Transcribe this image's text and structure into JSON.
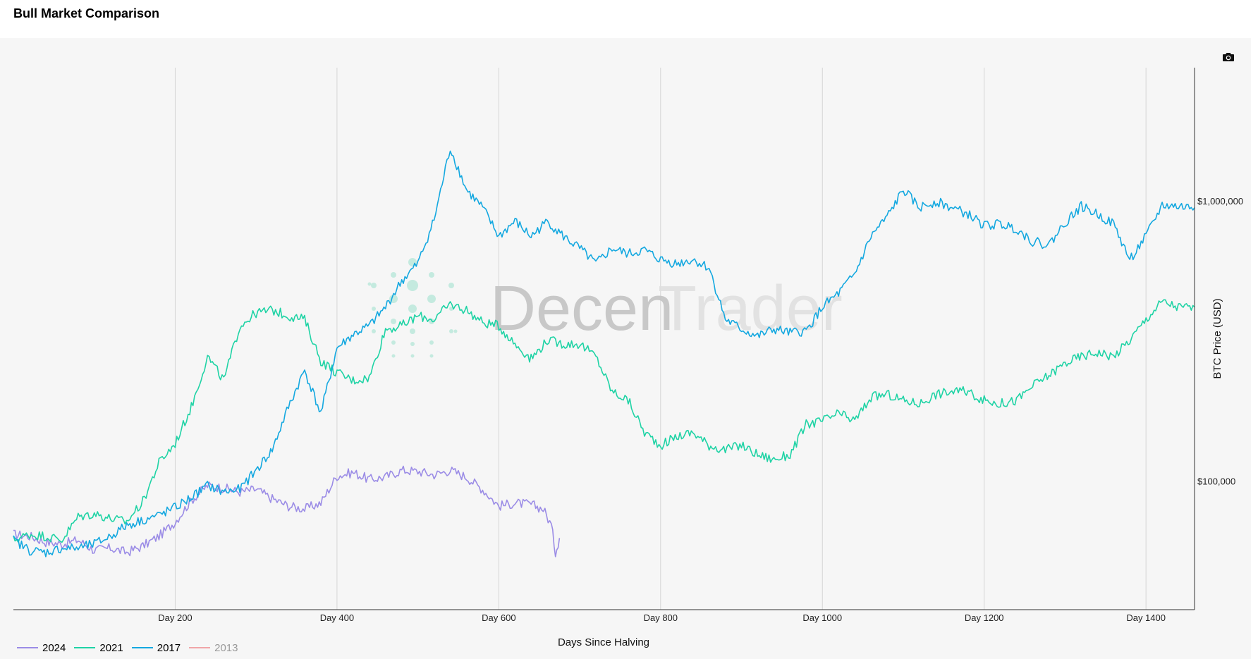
{
  "header": {
    "title": "Bull Market Comparison"
  },
  "toolbar": {
    "camera_icon": "camera-icon"
  },
  "watermark": {
    "text_dark": "Decen",
    "text_light": "Trader"
  },
  "colors": {
    "2024": "#9b8ce6",
    "2021": "#1fd3a5",
    "2017": "#14a8e0",
    "2013": "#f0a5a8",
    "grid": "#d5d5d5",
    "axis": "#333333"
  },
  "chart_data": {
    "type": "line",
    "title": "",
    "xlabel": "Days Since Halving",
    "ylabel": "BTC Price (USD)",
    "y_scale": "log",
    "ylim": [
      35000,
      3000000
    ],
    "xlim": [
      0,
      1460
    ],
    "x_ticks": [
      {
        "value": 200,
        "label": "Day 200"
      },
      {
        "value": 400,
        "label": "Day 400"
      },
      {
        "value": 600,
        "label": "Day 600"
      },
      {
        "value": 800,
        "label": "Day 800"
      },
      {
        "value": 1000,
        "label": "Day 1000"
      },
      {
        "value": 1200,
        "label": "Day 1200"
      },
      {
        "value": 1400,
        "label": "Day 1400"
      }
    ],
    "y_ticks": [
      {
        "value": 100000,
        "label": "$100,000"
      },
      {
        "value": 1000000,
        "label": "$1,000,000"
      }
    ],
    "legend_position": "bottom-left",
    "series": [
      {
        "name": "2024",
        "visible": true,
        "x": [
          0,
          20,
          40,
          60,
          80,
          100,
          120,
          140,
          160,
          180,
          200,
          220,
          240,
          260,
          280,
          300,
          320,
          340,
          360,
          380,
          400,
          420,
          440,
          460,
          480,
          500,
          520,
          540,
          560,
          580,
          600,
          620,
          640,
          655,
          665,
          670,
          675
        ],
        "y": [
          65000,
          64000,
          61000,
          60000,
          62000,
          57000,
          58000,
          56000,
          59000,
          64000,
          72000,
          86000,
          97000,
          95000,
          92000,
          94000,
          87000,
          82000,
          80000,
          84000,
          105000,
          108000,
          102000,
          104000,
          110000,
          109000,
          106000,
          110000,
          104000,
          94000,
          82000,
          84000,
          83000,
          80000,
          70000,
          56000,
          63000
        ]
      },
      {
        "name": "2021",
        "visible": true,
        "x": [
          0,
          20,
          40,
          60,
          80,
          100,
          120,
          140,
          160,
          180,
          200,
          220,
          240,
          260,
          280,
          300,
          320,
          340,
          360,
          380,
          400,
          420,
          440,
          460,
          480,
          500,
          520,
          540,
          560,
          580,
          600,
          620,
          640,
          660,
          680,
          700,
          720,
          740,
          760,
          780,
          800,
          820,
          840,
          860,
          880,
          900,
          920,
          940,
          960,
          980,
          1000,
          1020,
          1040,
          1060,
          1080,
          1100,
          1120,
          1140,
          1160,
          1180,
          1200,
          1220,
          1240,
          1260,
          1280,
          1300,
          1320,
          1340,
          1360,
          1380,
          1400,
          1420,
          1440,
          1460
        ],
        "y": [
          62000,
          65000,
          64000,
          62000,
          75000,
          77000,
          74000,
          72000,
          85000,
          117000,
          137000,
          185000,
          280000,
          230000,
          360000,
          400000,
          410000,
          390000,
          380000,
          270000,
          245000,
          230000,
          235000,
          350000,
          360000,
          390000,
          380000,
          430000,
          410000,
          370000,
          360000,
          310000,
          275000,
          320000,
          310000,
          310000,
          280000,
          210000,
          195000,
          150000,
          135000,
          145000,
          150000,
          135000,
          130000,
          135000,
          125000,
          120000,
          125000,
          160000,
          165000,
          175000,
          165000,
          200000,
          205000,
          195000,
          190000,
          205000,
          210000,
          210000,
          195000,
          190000,
          195000,
          220000,
          240000,
          265000,
          280000,
          290000,
          280000,
          320000,
          380000,
          440000,
          420000,
          420000
        ]
      },
      {
        "name": "2017",
        "visible": true,
        "x": [
          0,
          20,
          40,
          60,
          80,
          100,
          120,
          140,
          160,
          180,
          200,
          220,
          240,
          260,
          280,
          300,
          320,
          340,
          360,
          380,
          400,
          420,
          440,
          460,
          480,
          500,
          520,
          540,
          560,
          580,
          600,
          620,
          640,
          660,
          680,
          700,
          720,
          740,
          760,
          780,
          800,
          820,
          840,
          860,
          880,
          900,
          920,
          940,
          960,
          980,
          1000,
          1020,
          1040,
          1060,
          1080,
          1100,
          1120,
          1140,
          1160,
          1180,
          1200,
          1220,
          1240,
          1260,
          1280,
          1300,
          1320,
          1340,
          1360,
          1380,
          1400,
          1420,
          1440,
          1460
        ],
        "y": [
          62000,
          57000,
          56000,
          58000,
          58000,
          60000,
          64000,
          70000,
          73000,
          76000,
          81000,
          88000,
          97000,
          92000,
          94000,
          110000,
          130000,
          185000,
          250000,
          175000,
          300000,
          335000,
          360000,
          420000,
          520000,
          600000,
          860000,
          1550000,
          1100000,
          950000,
          750000,
          850000,
          750000,
          850000,
          750000,
          680000,
          600000,
          680000,
          650000,
          670000,
          620000,
          600000,
          620000,
          580000,
          380000,
          350000,
          330000,
          350000,
          340000,
          345000,
          420000,
          470000,
          550000,
          750000,
          880000,
          1100000,
          950000,
          1000000,
          950000,
          900000,
          820000,
          830000,
          800000,
          720000,
          700000,
          840000,
          960000,
          900000,
          830000,
          620000,
          750000,
          970000,
          960000,
          950000
        ]
      },
      {
        "name": "2013",
        "visible": false,
        "x": [],
        "y": []
      }
    ]
  }
}
